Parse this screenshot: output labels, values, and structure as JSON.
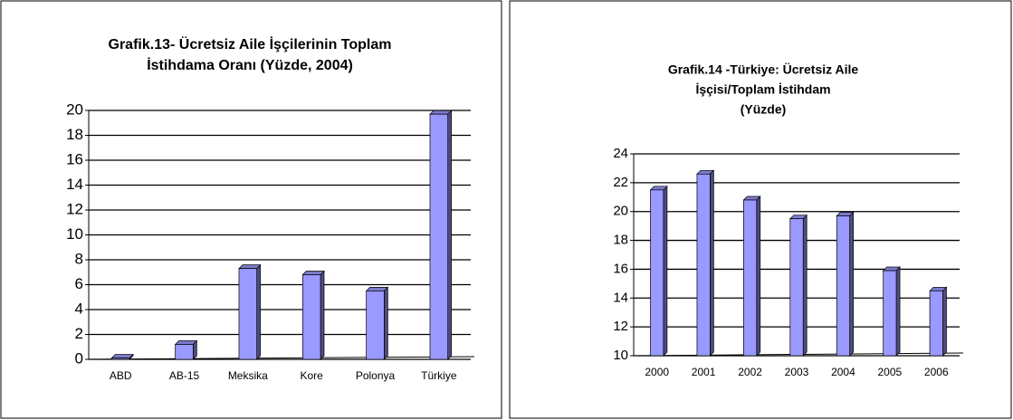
{
  "chart_data": [
    {
      "type": "bar",
      "title": [
        "Grafik.13- Ücretsiz Aile İşçilerinin Toplam",
        "İstihdama Oranı (Yüzde, 2004)"
      ],
      "categories": [
        "ABD",
        "AB-15",
        "Meksika",
        "Kore",
        "Polonya",
        "Türkiye"
      ],
      "values": [
        0.1,
        1.2,
        7.3,
        6.8,
        5.5,
        19.7
      ],
      "color": "#9999ff",
      "ylim": [
        0,
        20
      ],
      "yticks": [
        0,
        2,
        4,
        6,
        8,
        10,
        12,
        14,
        16,
        18,
        20
      ],
      "grid": true
    },
    {
      "type": "bar",
      "title": [
        "Grafik.14 -Türkiye: Ücretsiz Aile",
        "İşçisi/Toplam İstihdam",
        "(Yüzde)"
      ],
      "categories": [
        "2000",
        "2001",
        "2002",
        "2003",
        "2004",
        "2005",
        "2006"
      ],
      "values": [
        21.5,
        22.6,
        20.8,
        19.5,
        19.7,
        15.9,
        14.5
      ],
      "color": "#9999ff",
      "ylim": [
        10,
        24
      ],
      "yticks": [
        10,
        12,
        14,
        16,
        18,
        20,
        22,
        24
      ],
      "grid": true
    }
  ]
}
